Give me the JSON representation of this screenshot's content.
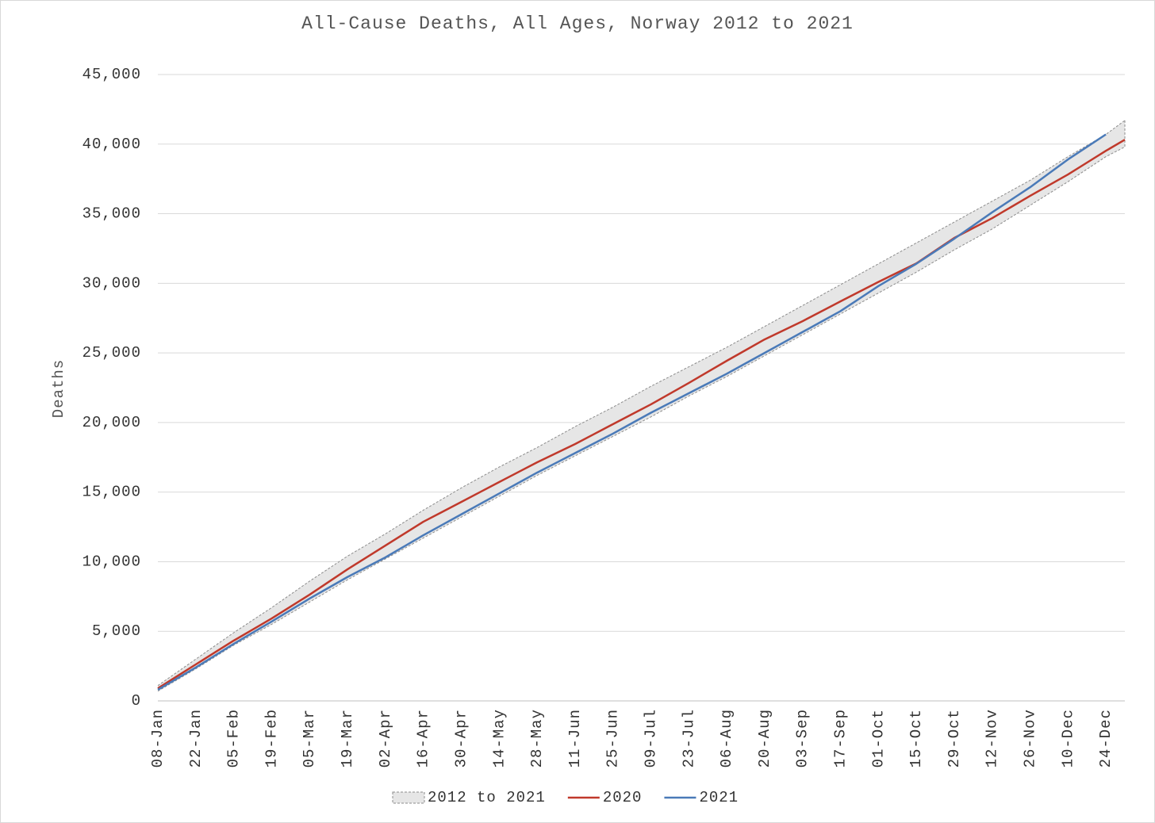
{
  "chart_data": {
    "type": "line",
    "title": "All-Cause Deaths, All Ages, Norway 2012 to 2021",
    "y_label": "Deaths",
    "categories": [
      "08-Jan",
      null,
      "22-Jan",
      null,
      "05-Feb",
      null,
      "19-Feb",
      null,
      "05-Mar",
      null,
      "19-Mar",
      null,
      "02-Apr",
      null,
      "16-Apr",
      null,
      "30-Apr",
      null,
      "14-May",
      null,
      "28-May",
      null,
      "11-Jun",
      null,
      "25-Jun",
      null,
      "09-Jul",
      null,
      "23-Jul",
      null,
      "06-Aug",
      null,
      "20-Aug",
      null,
      "03-Sep",
      null,
      "17-Sep",
      null,
      "01-Oct",
      null,
      "15-Oct",
      null,
      "29-Oct",
      null,
      "12-Nov",
      null,
      "26-Nov",
      null,
      "10-Dec",
      null,
      "24-Dec",
      null
    ],
    "band": {
      "name": "2012 to 2021",
      "color": "#e6e6e6",
      "edge_color": "#8c8c8c",
      "upper": [
        1100,
        2050,
        3000,
        3950,
        4900,
        5800,
        6700,
        7650,
        8600,
        9500,
        10400,
        11200,
        12000,
        12850,
        13700,
        14500,
        15300,
        16050,
        16800,
        17500,
        18200,
        18950,
        19700,
        20400,
        21100,
        21850,
        22600,
        23300,
        24000,
        24700,
        25400,
        26150,
        26900,
        27650,
        28400,
        29150,
        29900,
        30650,
        31400,
        32150,
        32900,
        33650,
        34400,
        35150,
        35900,
        36650,
        37400,
        38250,
        39100,
        39900,
        40700,
        41700
      ],
      "lower": [
        700,
        1500,
        2300,
        3150,
        4000,
        4750,
        5500,
        6300,
        7100,
        7900,
        8700,
        9450,
        10200,
        10950,
        11700,
        12450,
        13200,
        13950,
        14700,
        15450,
        16200,
        16900,
        17600,
        18300,
        19000,
        19700,
        20400,
        21150,
        21900,
        22600,
        23300,
        24050,
        24800,
        25550,
        26300,
        27050,
        27800,
        28550,
        29300,
        30050,
        30800,
        31600,
        32400,
        33150,
        33900,
        34750,
        35600,
        36450,
        37300,
        38200,
        39100,
        39800
      ]
    },
    "series": [
      {
        "name": "2020",
        "color": "#c0392b",
        "values": [
          900,
          1760,
          2620,
          3475,
          4330,
          5125,
          5920,
          6775,
          7630,
          8540,
          9450,
          10305,
          11160,
          12015,
          12870,
          13580,
          14290,
          15005,
          15720,
          16430,
          17140,
          17795,
          18450,
          19165,
          19880,
          20590,
          21300,
          22070,
          22840,
          23635,
          24430,
          25200,
          25970,
          26625,
          27280,
          27990,
          28700,
          29400,
          30100,
          30765,
          31430,
          32345,
          33260,
          33970,
          34680,
          35480,
          36280,
          37050,
          37820,
          38670,
          39520,
          40320
        ]
      },
      {
        "name": "2021",
        "color": "#4a7ab8",
        "values": [
          800,
          1600,
          2400,
          3250,
          4100,
          4900,
          5700,
          6525,
          7350,
          8125,
          8900,
          9605,
          10310,
          11105,
          11900,
          12650,
          13400,
          14150,
          14900,
          15650,
          16400,
          17100,
          17800,
          18500,
          19200,
          19950,
          20700,
          21400,
          22100,
          22800,
          23500,
          24250,
          25000,
          25750,
          26500,
          27250,
          28000,
          28900,
          29800,
          30600,
          31400,
          32300,
          33200,
          34150,
          35100,
          36000,
          36900,
          37900,
          38900,
          39800,
          40700,
          null
        ]
      }
    ],
    "ylim": [
      0,
      45000
    ],
    "yticks": [
      0,
      {
        "value": 5000,
        "label": "5,000"
      },
      {
        "value": 10000,
        "label": "10,000"
      },
      {
        "value": 15000,
        "label": "15,000"
      },
      {
        "value": 20000,
        "label": "20,000"
      },
      {
        "value": 25000,
        "label": "25,000"
      },
      {
        "value": 30000,
        "label": "30,000"
      },
      {
        "value": 35000,
        "label": "35,000"
      },
      {
        "value": 40000,
        "label": "40,000"
      },
      {
        "value": 45000,
        "label": "45,000"
      }
    ],
    "grid": true,
    "legend": "bottom"
  }
}
